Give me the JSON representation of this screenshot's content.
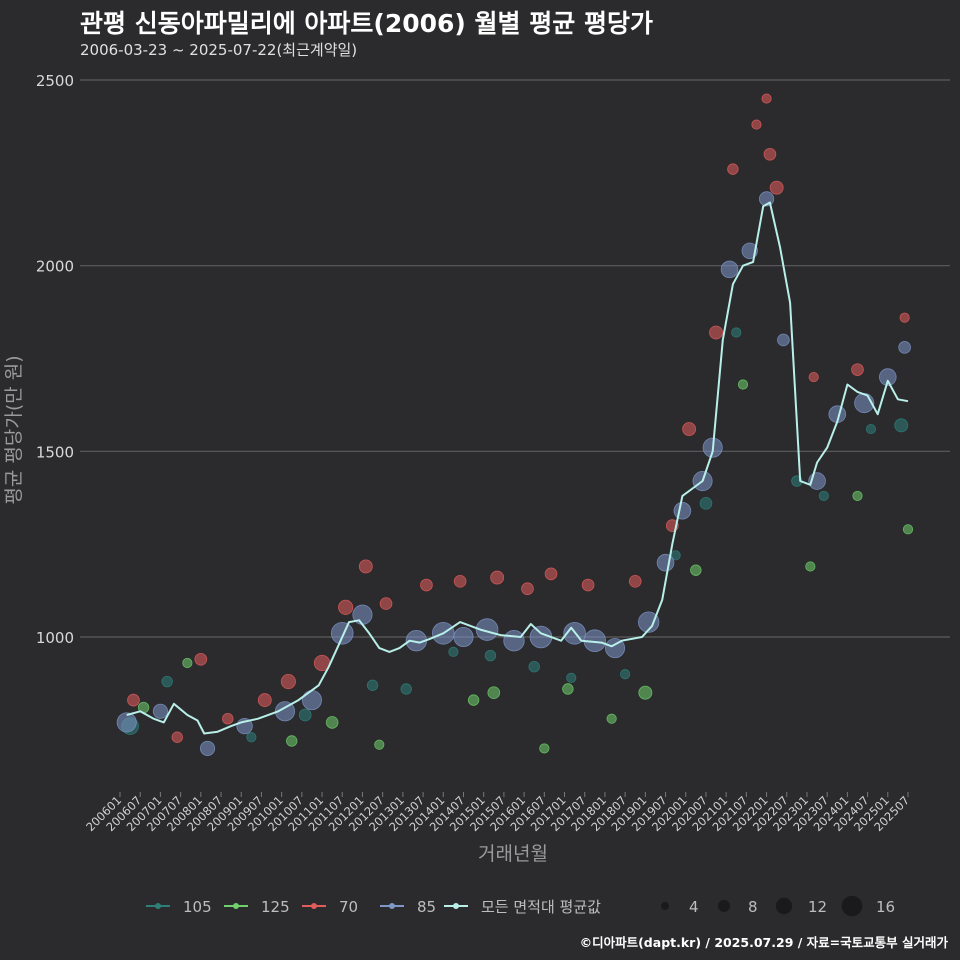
{
  "header": {
    "title": "관평 신동아파밀리에 아파트(2006) 월별 평균 평당가",
    "subtitle": "2006-03-23 ~ 2025-07-22(최근계약일)"
  },
  "caption": "©디아파트(dapt.kr) / 2025.07.29 / 자료=국토교통부 실거래가",
  "colors": {
    "background": "#2b2b2d",
    "grid": "#5c5c5e",
    "avg_line": "#b8efe9",
    "s105": "#2e7f7a",
    "s125": "#6fd06c",
    "s70": "#e35c5c",
    "s85": "#7e96c8"
  },
  "chart_data": {
    "type": "scatter",
    "xlabel": "거래년월",
    "ylabel": "평균 평당가(만 원)",
    "ylim": [
      600,
      2550
    ],
    "yticks": [
      1000,
      1500,
      2000,
      2500
    ],
    "xticks": [
      "200601",
      "200607",
      "200701",
      "200707",
      "200801",
      "200807",
      "200901",
      "200907",
      "201001",
      "201007",
      "201101",
      "201107",
      "201201",
      "201207",
      "201301",
      "201307",
      "201401",
      "201407",
      "201501",
      "201507",
      "201601",
      "201607",
      "201701",
      "201707",
      "201801",
      "201807",
      "201901",
      "201907",
      "202001",
      "202007",
      "202101",
      "202107",
      "202201",
      "202207",
      "202301",
      "202307",
      "202401",
      "202407",
      "202501",
      "202507"
    ],
    "grid": true,
    "legend": {
      "position": "bottom",
      "series_items": [
        {
          "label": "105",
          "color": "#2e7f7a"
        },
        {
          "label": "125",
          "color": "#6fd06c"
        },
        {
          "label": "70",
          "color": "#e35c5c"
        },
        {
          "label": "85",
          "color": "#7e96c8"
        },
        {
          "label": "모든 면적대 평균값",
          "color": "#b8efe9"
        }
      ],
      "size_items": [
        4,
        8,
        12,
        16
      ]
    },
    "average_line": {
      "name": "모든 면적대 평균값",
      "points": [
        [
          "2006-03",
          790
        ],
        [
          "2006-07",
          800
        ],
        [
          "2006-11",
          780
        ],
        [
          "2007-02",
          770
        ],
        [
          "2007-05",
          820
        ],
        [
          "2007-09",
          790
        ],
        [
          "2007-12",
          775
        ],
        [
          "2008-02",
          740
        ],
        [
          "2008-06",
          745
        ],
        [
          "2008-10",
          760
        ],
        [
          "2009-01",
          770
        ],
        [
          "2009-06",
          780
        ],
        [
          "2009-12",
          800
        ],
        [
          "2010-06",
          830
        ],
        [
          "2010-12",
          870
        ],
        [
          "2011-03",
          920
        ],
        [
          "2011-06",
          980
        ],
        [
          "2011-09",
          1040
        ],
        [
          "2011-12",
          1045
        ],
        [
          "2012-03",
          1010
        ],
        [
          "2012-06",
          970
        ],
        [
          "2012-09",
          960
        ],
        [
          "2012-12",
          970
        ],
        [
          "2013-03",
          990
        ],
        [
          "2013-06",
          985
        ],
        [
          "2013-09",
          995
        ],
        [
          "2014-01",
          1010
        ],
        [
          "2014-06",
          1040
        ],
        [
          "2014-12",
          1020
        ],
        [
          "2015-06",
          1005
        ],
        [
          "2015-12",
          1000
        ],
        [
          "2016-03",
          1035
        ],
        [
          "2016-06",
          1010
        ],
        [
          "2016-12",
          990
        ],
        [
          "2017-03",
          1025
        ],
        [
          "2017-06",
          990
        ],
        [
          "2017-12",
          985
        ],
        [
          "2018-03",
          975
        ],
        [
          "2018-06",
          990
        ],
        [
          "2018-12",
          1000
        ],
        [
          "2019-03",
          1030
        ],
        [
          "2019-06",
          1100
        ],
        [
          "2019-09",
          1250
        ],
        [
          "2019-12",
          1380
        ],
        [
          "2020-03",
          1400
        ],
        [
          "2020-06",
          1420
        ],
        [
          "2020-09",
          1500
        ],
        [
          "2020-12",
          1800
        ],
        [
          "2021-03",
          1950
        ],
        [
          "2021-06",
          2000
        ],
        [
          "2021-09",
          2010
        ],
        [
          "2021-12",
          2160
        ],
        [
          "2022-02",
          2170
        ],
        [
          "2022-05",
          2050
        ],
        [
          "2022-08",
          1900
        ],
        [
          "2022-11",
          1420
        ],
        [
          "2023-02",
          1410
        ],
        [
          "2023-04",
          1470
        ],
        [
          "2023-07",
          1510
        ],
        [
          "2023-10",
          1580
        ],
        [
          "2024-01",
          1680
        ],
        [
          "2024-04",
          1660
        ],
        [
          "2024-07",
          1650
        ],
        [
          "2024-10",
          1600
        ],
        [
          "2025-01",
          1690
        ],
        [
          "2025-04",
          1640
        ],
        [
          "2025-07",
          1635
        ]
      ]
    },
    "series": [
      {
        "name": "105",
        "color": "#2e7f7a",
        "points": [
          [
            "2006-04",
            760,
            10
          ],
          [
            "2007-03",
            880,
            5
          ],
          [
            "2009-04",
            730,
            4
          ],
          [
            "2010-08",
            790,
            6
          ],
          [
            "2012-04",
            870,
            5
          ],
          [
            "2013-02",
            860,
            5
          ],
          [
            "2014-04",
            960,
            4
          ],
          [
            "2015-03",
            950,
            5
          ],
          [
            "2016-04",
            920,
            5
          ],
          [
            "2017-03",
            890,
            4
          ],
          [
            "2018-07",
            900,
            4
          ],
          [
            "2019-10",
            1220,
            4
          ],
          [
            "2020-07",
            1360,
            6
          ],
          [
            "2021-04",
            1820,
            4
          ],
          [
            "2022-10",
            1420,
            5
          ],
          [
            "2023-06",
            1380,
            4
          ],
          [
            "2024-08",
            1560,
            4
          ],
          [
            "2025-05",
            1570,
            7
          ]
        ]
      },
      {
        "name": "125",
        "color": "#6fd06c",
        "points": [
          [
            "2006-08",
            810,
            5
          ],
          [
            "2007-09",
            930,
            4
          ],
          [
            "2010-04",
            720,
            5
          ],
          [
            "2011-04",
            770,
            6
          ],
          [
            "2012-06",
            710,
            4
          ],
          [
            "2014-10",
            830,
            5
          ],
          [
            "2015-04",
            850,
            6
          ],
          [
            "2016-07",
            700,
            4
          ],
          [
            "2017-02",
            860,
            5
          ],
          [
            "2018-03",
            780,
            4
          ],
          [
            "2019-01",
            850,
            7
          ],
          [
            "2020-04",
            1180,
            5
          ],
          [
            "2021-06",
            1680,
            4
          ],
          [
            "2023-02",
            1190,
            4
          ],
          [
            "2024-04",
            1380,
            4
          ],
          [
            "2025-07",
            1290,
            4
          ]
        ]
      },
      {
        "name": "70",
        "color": "#e35c5c",
        "points": [
          [
            "2006-05",
            830,
            6
          ],
          [
            "2007-06",
            730,
            5
          ],
          [
            "2008-01",
            940,
            6
          ],
          [
            "2008-09",
            780,
            5
          ],
          [
            "2009-08",
            830,
            7
          ],
          [
            "2010-03",
            880,
            8
          ],
          [
            "2011-01",
            930,
            9
          ],
          [
            "2011-08",
            1080,
            8
          ],
          [
            "2012-02",
            1190,
            7
          ],
          [
            "2012-08",
            1090,
            6
          ],
          [
            "2013-08",
            1140,
            6
          ],
          [
            "2014-06",
            1150,
            6
          ],
          [
            "2015-05",
            1160,
            7
          ],
          [
            "2016-02",
            1130,
            6
          ],
          [
            "2016-09",
            1170,
            6
          ],
          [
            "2017-08",
            1140,
            6
          ],
          [
            "2018-10",
            1150,
            6
          ],
          [
            "2019-09",
            1300,
            6
          ],
          [
            "2020-02",
            1560,
            7
          ],
          [
            "2020-10",
            1820,
            7
          ],
          [
            "2021-03",
            2260,
            5
          ],
          [
            "2021-10",
            2380,
            4
          ],
          [
            "2022-01",
            2450,
            4
          ],
          [
            "2022-02",
            2300,
            6
          ],
          [
            "2022-04",
            2210,
            7
          ],
          [
            "2023-03",
            1700,
            4
          ],
          [
            "2024-04",
            1720,
            6
          ],
          [
            "2025-06",
            1860,
            4
          ]
        ]
      },
      {
        "name": "85",
        "color": "#7e96c8",
        "points": [
          [
            "2006-03",
            770,
            12
          ],
          [
            "2007-01",
            800,
            8
          ],
          [
            "2008-03",
            700,
            8
          ],
          [
            "2009-02",
            760,
            9
          ],
          [
            "2010-02",
            800,
            12
          ],
          [
            "2010-10",
            830,
            12
          ],
          [
            "2011-07",
            1010,
            14
          ],
          [
            "2012-01",
            1060,
            12
          ],
          [
            "2013-05",
            990,
            13
          ],
          [
            "2014-01",
            1010,
            14
          ],
          [
            "2014-07",
            1000,
            12
          ],
          [
            "2015-02",
            1020,
            14
          ],
          [
            "2015-10",
            990,
            13
          ],
          [
            "2016-06",
            1000,
            14
          ],
          [
            "2017-04",
            1010,
            14
          ],
          [
            "2017-10",
            990,
            14
          ],
          [
            "2018-04",
            970,
            12
          ],
          [
            "2019-02",
            1040,
            13
          ],
          [
            "2019-07",
            1200,
            10
          ],
          [
            "2019-12",
            1340,
            10
          ],
          [
            "2020-06",
            1420,
            12
          ],
          [
            "2020-09",
            1510,
            12
          ],
          [
            "2021-02",
            1990,
            10
          ],
          [
            "2021-08",
            2040,
            9
          ],
          [
            "2022-01",
            2180,
            8
          ],
          [
            "2022-06",
            1800,
            6
          ],
          [
            "2023-04",
            1420,
            10
          ],
          [
            "2023-10",
            1600,
            10
          ],
          [
            "2024-06",
            1630,
            12
          ],
          [
            "2025-01",
            1700,
            10
          ],
          [
            "2025-06",
            1780,
            6
          ]
        ]
      }
    ]
  }
}
